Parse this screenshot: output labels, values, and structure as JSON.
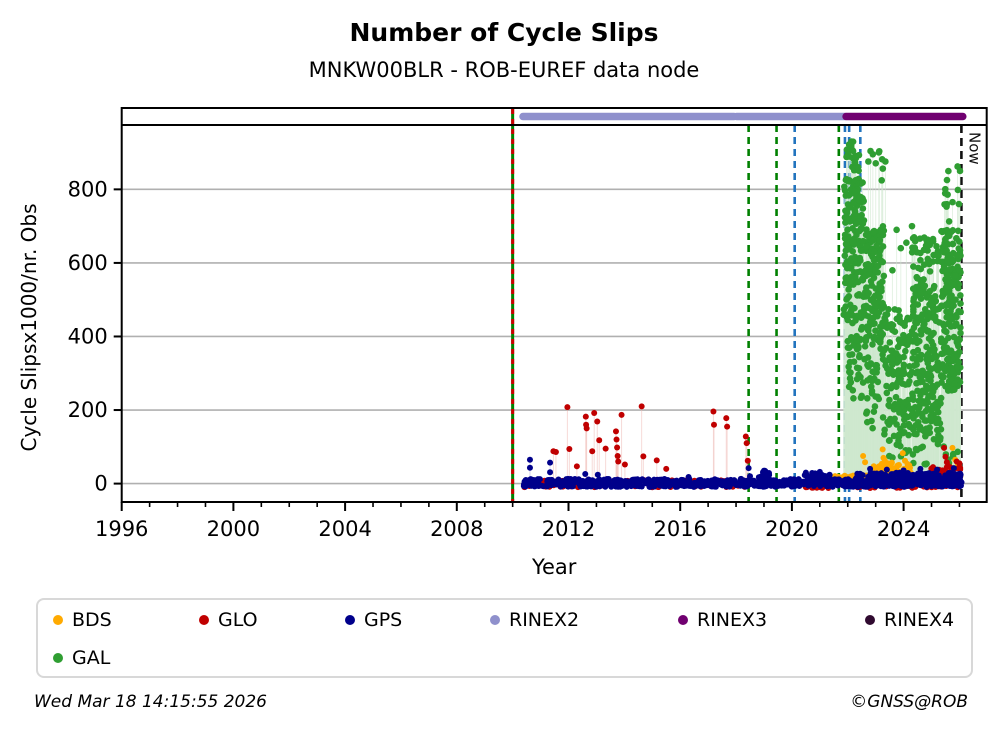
{
  "title": "Number of Cycle Slips",
  "subtitle": "MNKW00BLR - ROB-EUREF data node",
  "footer": {
    "timestamp": "Wed Mar 18 14:15:55 2026",
    "credit": "©GNSS@ROB"
  },
  "chart_data": {
    "type": "scatter",
    "title": "Number of Cycle Slips",
    "subtitle": "MNKW00BLR - ROB-EUREF data node",
    "xlabel": "Year",
    "ylabel": "Cycle Slipsx1000/nr. Obs",
    "x_ticks": [
      1996,
      2000,
      2004,
      2008,
      2012,
      2016,
      2020,
      2024
    ],
    "y_ticks": [
      0,
      200,
      400,
      600,
      800
    ],
    "xlim": [
      1996,
      2026.97
    ],
    "ylim": [
      -50,
      975
    ],
    "grid": "horizontal-only",
    "legend_position": "below-chart",
    "now_marker": {
      "label": "Now",
      "x": 2026.07,
      "color": "#111111",
      "style": "dashed"
    },
    "rinex_bars": [
      {
        "name": "RINEX2",
        "color": "#8f90cc",
        "segments": [
          [
            2010.37,
            2017.93
          ],
          [
            2018.02,
            2021.9
          ]
        ]
      },
      {
        "name": "RINEX3",
        "color": "#700070",
        "segments": [
          [
            2021.94,
            2026.12
          ]
        ]
      }
    ],
    "events": [
      {
        "x": 2010.0,
        "color": "#008000",
        "style": "solid",
        "overlay_color": "#cc0000",
        "overlay_style": "dashed"
      },
      {
        "x": 2018.45,
        "color": "#008000",
        "style": "dashed"
      },
      {
        "x": 2019.45,
        "color": "#008000",
        "style": "dashed"
      },
      {
        "x": 2020.1,
        "color": "#2274be",
        "style": "dashed"
      },
      {
        "x": 2021.68,
        "color": "#008000",
        "style": "dashed"
      },
      {
        "x": 2021.9,
        "color": "#2274be",
        "style": "dashed"
      },
      {
        "x": 2022.05,
        "color": "#2274be",
        "style": "dashed"
      },
      {
        "x": 2022.45,
        "color": "#2274be",
        "style": "dashed"
      }
    ],
    "series": [
      {
        "name": "GAL",
        "color": "#2f9e32",
        "stem_color": "#cfe8cf",
        "stem_min": 45,
        "radius": 3.3,
        "points": [
          [
            2023.6,
            580
          ],
          [
            2023.75,
            690
          ],
          [
            2023.9,
            640
          ],
          [
            2024.1,
            655
          ],
          [
            2024.3,
            700
          ],
          [
            2024.35,
            590
          ],
          [
            2025.98,
            760
          ],
          [
            2026.02,
            850
          ]
        ],
        "bands": [
          {
            "x0": 2021.85,
            "x1": 2022.6,
            "y0": 450,
            "y1": 830,
            "n": 170
          },
          {
            "x0": 2021.95,
            "x1": 2022.4,
            "y0": 845,
            "y1": 935,
            "n": 22
          },
          {
            "x0": 2022.0,
            "x1": 2022.55,
            "y0": 230,
            "y1": 450,
            "n": 45
          },
          {
            "x0": 2022.6,
            "x1": 2023.3,
            "y0": 380,
            "y1": 700,
            "n": 140
          },
          {
            "x0": 2022.6,
            "x1": 2023.35,
            "y0": 150,
            "y1": 380,
            "n": 40
          },
          {
            "x0": 2022.7,
            "x1": 2023.4,
            "y0": 820,
            "y1": 905,
            "n": 10
          },
          {
            "x0": 2023.3,
            "x1": 2024.25,
            "y0": 100,
            "y1": 480,
            "n": 130
          },
          {
            "x0": 2024.3,
            "x1": 2025.35,
            "y0": 120,
            "y1": 670,
            "n": 260
          },
          {
            "x0": 2025.35,
            "x1": 2026.05,
            "y0": 250,
            "y1": 690,
            "n": 210
          },
          {
            "x0": 2025.4,
            "x1": 2026.05,
            "y0": 700,
            "y1": 870,
            "n": 12
          },
          {
            "x0": 2023.3,
            "x1": 2026.0,
            "y0": 50,
            "y1": 120,
            "n": 28
          }
        ]
      },
      {
        "name": "BDS",
        "color": "#ffaa00",
        "stem_color": "#ffdf9e",
        "stem_min": 40,
        "radius": 3,
        "points": [
          [
            2022.55,
            75
          ],
          [
            2022.62,
            58
          ],
          [
            2023.25,
            93
          ],
          [
            2023.28,
            70
          ],
          [
            2023.33,
            62
          ],
          [
            2023.45,
            55
          ],
          [
            2023.58,
            57
          ],
          [
            2023.8,
            50
          ],
          [
            2023.97,
            83
          ],
          [
            2024.05,
            62
          ],
          [
            2024.15,
            48
          ],
          [
            2025.75,
            97
          ],
          [
            2025.85,
            65
          ],
          [
            2025.95,
            52
          ],
          [
            2026.0,
            45
          ]
        ],
        "bands": [
          {
            "x0": 2021.5,
            "x1": 2026.05,
            "y0": -4,
            "y1": 22,
            "n": 170
          },
          {
            "x0": 2022.9,
            "x1": 2024.35,
            "y0": 15,
            "y1": 55,
            "n": 70
          }
        ]
      },
      {
        "name": "GLO",
        "color": "#c00000",
        "stem_color": "#f0bdb8",
        "stem_min": 40,
        "radius": 3,
        "points": [
          [
            2011.46,
            88
          ],
          [
            2011.55,
            86
          ],
          [
            2011.96,
            208
          ],
          [
            2012.03,
            94
          ],
          [
            2012.3,
            47
          ],
          [
            2012.62,
            182
          ],
          [
            2012.63,
            160
          ],
          [
            2012.65,
            150
          ],
          [
            2012.85,
            88
          ],
          [
            2012.92,
            192
          ],
          [
            2013.03,
            169
          ],
          [
            2013.1,
            118
          ],
          [
            2013.33,
            95
          ],
          [
            2013.7,
            142
          ],
          [
            2013.72,
            120
          ],
          [
            2013.74,
            98
          ],
          [
            2013.76,
            75
          ],
          [
            2013.78,
            60
          ],
          [
            2013.9,
            187
          ],
          [
            2014.02,
            52
          ],
          [
            2014.62,
            210
          ],
          [
            2014.68,
            74
          ],
          [
            2015.16,
            63
          ],
          [
            2015.5,
            40
          ],
          [
            2017.19,
            196
          ],
          [
            2017.21,
            160
          ],
          [
            2017.65,
            178
          ],
          [
            2017.68,
            155
          ],
          [
            2018.35,
            128
          ],
          [
            2018.38,
            110
          ],
          [
            2018.42,
            62
          ],
          [
            2025.45,
            97
          ],
          [
            2025.5,
            73
          ],
          [
            2025.55,
            58
          ],
          [
            2025.6,
            48
          ],
          [
            2025.9,
            60
          ],
          [
            2025.95,
            42
          ],
          [
            2026.0,
            55
          ]
        ],
        "bands": [
          {
            "x0": 2010.4,
            "x1": 2018.5,
            "y0": -10,
            "y1": 10,
            "n": 160
          },
          {
            "x0": 2020.3,
            "x1": 2021.4,
            "y0": -12,
            "y1": 6,
            "n": 40
          },
          {
            "x0": 2022.3,
            "x1": 2026.05,
            "y0": -12,
            "y1": 8,
            "n": 120
          },
          {
            "x0": 2024.9,
            "x1": 2026.05,
            "y0": 5,
            "y1": 45,
            "n": 50
          }
        ]
      },
      {
        "name": "GPS",
        "color": "#00008b",
        "stem_color": "#c9c9e8",
        "stem_min": 35,
        "radius": 3,
        "points": [
          [
            2010.62,
            65
          ],
          [
            2010.62,
            43
          ],
          [
            2011.34,
            57
          ],
          [
            2011.34,
            31
          ],
          [
            2012.6,
            26
          ],
          [
            2013.05,
            24
          ],
          [
            2016.3,
            18
          ],
          [
            2018.45,
            42
          ],
          [
            2018.5,
            20
          ],
          [
            2019.0,
            35
          ],
          [
            2019.05,
            25
          ],
          [
            2020.5,
            30
          ],
          [
            2021.0,
            32
          ],
          [
            2021.35,
            24
          ],
          [
            2022.8,
            40
          ],
          [
            2023.4,
            38
          ],
          [
            2024.0,
            36
          ],
          [
            2024.6,
            40
          ],
          [
            2025.2,
            38
          ],
          [
            2025.8,
            42
          ]
        ],
        "bands": [
          {
            "x0": 2010.35,
            "x1": 2022.3,
            "y0": -9,
            "y1": 13,
            "n": 620
          },
          {
            "x0": 2022.3,
            "x1": 2026.08,
            "y0": -9,
            "y1": 30,
            "n": 330
          },
          {
            "x0": 2018.8,
            "x1": 2019.2,
            "y0": 5,
            "y1": 35,
            "n": 25
          },
          {
            "x0": 2020.4,
            "x1": 2021.4,
            "y0": 5,
            "y1": 30,
            "n": 30
          }
        ]
      }
    ],
    "legend": [
      {
        "label": "BDS",
        "color": "#ffaa00"
      },
      {
        "label": "GLO",
        "color": "#c00000"
      },
      {
        "label": "GPS",
        "color": "#00008b"
      },
      {
        "label": "RINEX2",
        "color": "#8f90cc"
      },
      {
        "label": "RINEX3",
        "color": "#700070"
      },
      {
        "label": "RINEX4",
        "color": "#300a30"
      },
      {
        "label": "GAL",
        "color": "#2f9e32"
      }
    ]
  },
  "render": {
    "seed": 7
  }
}
